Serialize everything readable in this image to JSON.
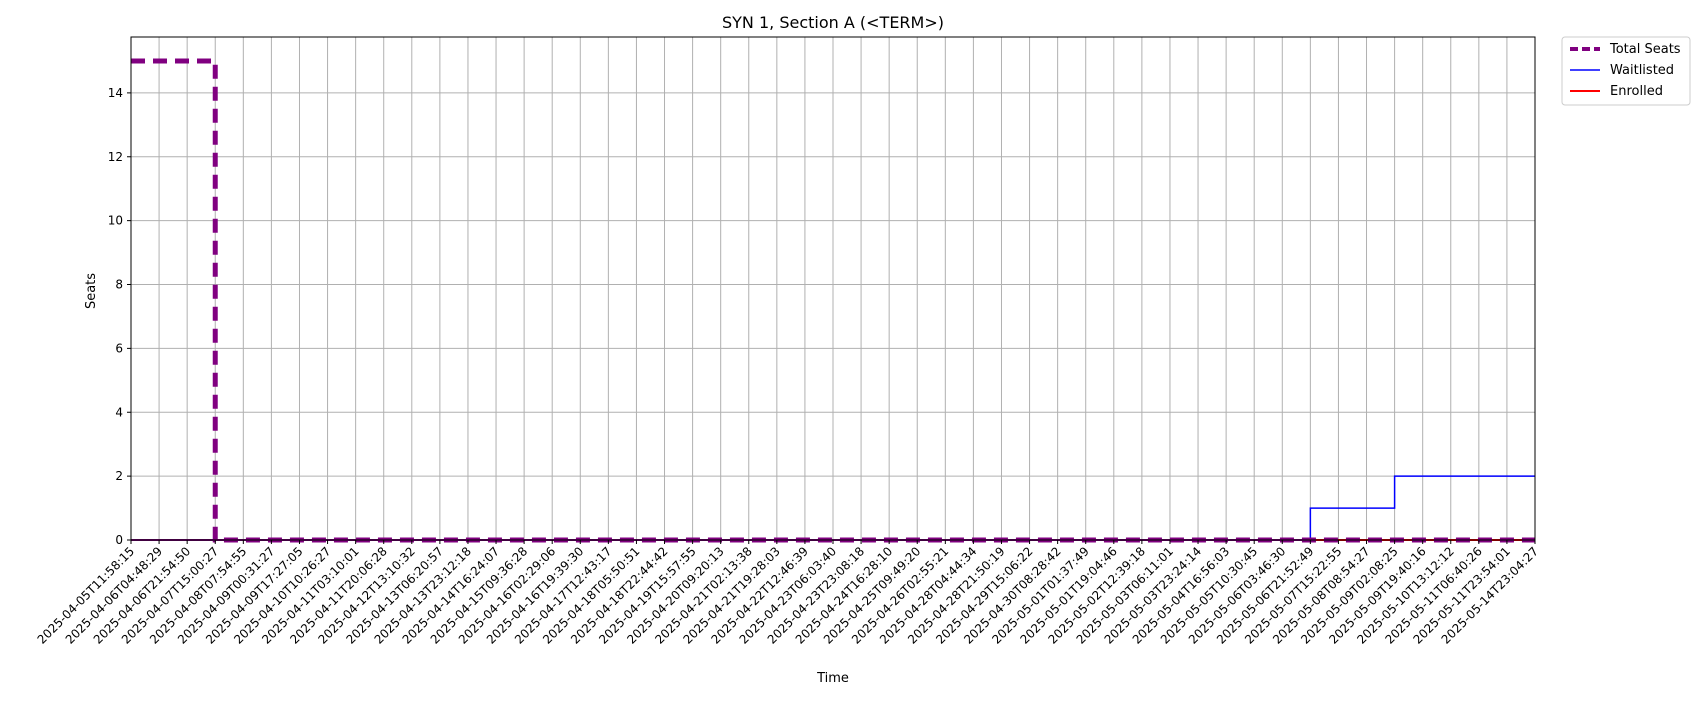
{
  "chart_data": {
    "type": "line",
    "title": "SYN 1, Section A (<TERM>)",
    "xlabel": "Time",
    "ylabel": "Seats",
    "ylim": [
      0,
      15.75
    ],
    "yticks": [
      0,
      2,
      4,
      6,
      8,
      10,
      12,
      14
    ],
    "grid": true,
    "legend_position": "outside-top-right",
    "x": [
      "2025-04-05T11:58:15",
      "2025-04-06T04:48:29",
      "2025-04-06T21:54:50",
      "2025-04-07T15:00:27",
      "2025-04-08T07:54:55",
      "2025-04-09T00:31:27",
      "2025-04-09T17:27:05",
      "2025-04-10T10:26:27",
      "2025-04-11T03:10:01",
      "2025-04-11T20:06:28",
      "2025-04-12T13:10:32",
      "2025-04-13T06:20:57",
      "2025-04-13T23:12:18",
      "2025-04-14T16:24:07",
      "2025-04-15T09:36:28",
      "2025-04-16T02:29:06",
      "2025-04-16T19:39:30",
      "2025-04-17T12:43:17",
      "2025-04-18T05:50:51",
      "2025-04-18T22:44:42",
      "2025-04-19T15:57:55",
      "2025-04-20T09:20:13",
      "2025-04-21T02:13:38",
      "2025-04-21T19:28:03",
      "2025-04-22T12:46:39",
      "2025-04-23T06:03:40",
      "2025-04-23T23:08:18",
      "2025-04-24T16:28:10",
      "2025-04-25T09:49:20",
      "2025-04-26T02:55:21",
      "2025-04-28T04:44:34",
      "2025-04-28T21:50:19",
      "2025-04-29T15:06:22",
      "2025-04-30T08:28:42",
      "2025-05-01T01:37:49",
      "2025-05-01T19:04:46",
      "2025-05-02T12:39:18",
      "2025-05-03T06:11:01",
      "2025-05-03T23:24:14",
      "2025-05-04T16:56:03",
      "2025-05-05T10:30:45",
      "2025-05-06T03:46:30",
      "2025-05-06T21:52:49",
      "2025-05-07T15:22:55",
      "2025-05-08T08:54:27",
      "2025-05-09T02:08:25",
      "2025-05-09T19:40:16",
      "2025-05-10T13:12:12",
      "2025-05-11T06:40:26",
      "2025-05-11T23:54:01",
      "2025-05-14T23:04:27"
    ],
    "series": [
      {
        "name": "Total Seats",
        "color": "#800080",
        "style": "dashed",
        "step": true,
        "values": [
          15,
          15,
          15,
          0,
          0,
          0,
          0,
          0,
          0,
          0,
          0,
          0,
          0,
          0,
          0,
          0,
          0,
          0,
          0,
          0,
          0,
          0,
          0,
          0,
          0,
          0,
          0,
          0,
          0,
          0,
          0,
          0,
          0,
          0,
          0,
          0,
          0,
          0,
          0,
          0,
          0,
          0,
          0,
          0,
          0,
          0,
          0,
          0,
          0,
          0,
          0
        ]
      },
      {
        "name": "Waitlisted",
        "color": "#0000ff",
        "style": "solid",
        "step": true,
        "values": [
          0,
          0,
          0,
          0,
          0,
          0,
          0,
          0,
          0,
          0,
          0,
          0,
          0,
          0,
          0,
          0,
          0,
          0,
          0,
          0,
          0,
          0,
          0,
          0,
          0,
          0,
          0,
          0,
          0,
          0,
          0,
          0,
          0,
          0,
          0,
          0,
          0,
          0,
          0,
          0,
          0,
          0,
          1,
          1,
          1,
          2,
          2,
          2,
          2,
          2,
          2
        ]
      },
      {
        "name": "Enrolled",
        "color": "#ff0000",
        "style": "solid",
        "step": true,
        "values": [
          0,
          0,
          0,
          0,
          0,
          0,
          0,
          0,
          0,
          0,
          0,
          0,
          0,
          0,
          0,
          0,
          0,
          0,
          0,
          0,
          0,
          0,
          0,
          0,
          0,
          0,
          0,
          0,
          0,
          0,
          0,
          0,
          0,
          0,
          0,
          0,
          0,
          0,
          0,
          0,
          0,
          0,
          0,
          0,
          0,
          0,
          0,
          0,
          0,
          0,
          0
        ]
      }
    ]
  }
}
